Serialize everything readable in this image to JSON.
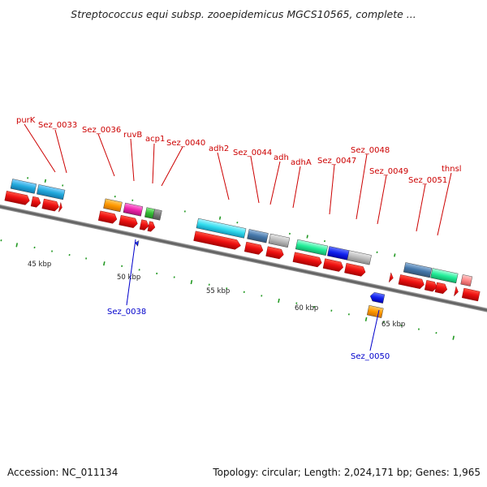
{
  "title": "Streptococcus equi subsp. zooepidemicus MGCS10565, complete ...",
  "footer": {
    "accession": "Accession: NC_011134",
    "summary": "Topology: circular; Length: 2,024,171 bp; Genes: 1,965"
  },
  "colors": {
    "cds_arrow": "#ee1111",
    "backbone": "#777777",
    "tick": "#229922",
    "label_red": "#cc0000",
    "label_blue": "#0000cc"
  },
  "scale_labels": [
    "45 kbp",
    "50 kbp",
    "55 kbp",
    "60 kbp",
    "65 kbp"
  ],
  "labels_top": [
    "purK",
    "Sez_0033",
    "Sez_0036",
    "ruvB",
    "acp1",
    "Sez_0040",
    "adh2",
    "Sez_0044",
    "adh",
    "adhA",
    "Sez_0047",
    "Sez_0048",
    "Sez_0049",
    "Sez_0051",
    "thnsl"
  ],
  "labels_bottom": [
    "Sez_0038",
    "Sez_0050"
  ]
}
